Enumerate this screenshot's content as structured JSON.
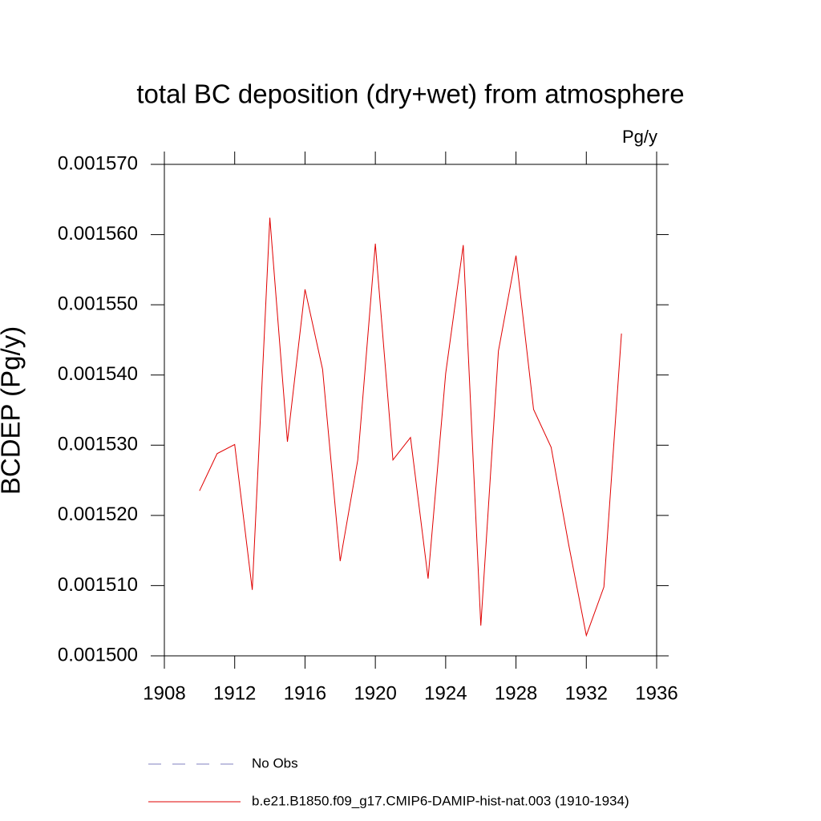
{
  "chart_data": {
    "type": "line",
    "title": "total BC deposition (dry+wet) from atmosphere",
    "units": "Pg/y",
    "y_label": "BCDEP  (Pg/y)",
    "x": [
      1910,
      1911,
      1912,
      1913,
      1914,
      1915,
      1916,
      1917,
      1918,
      1919,
      1920,
      1921,
      1922,
      1923,
      1924,
      1925,
      1926,
      1927,
      1928,
      1929,
      1930,
      1931,
      1932,
      1933,
      1934
    ],
    "series": [
      {
        "name": "No Obs",
        "color": "#8080c0",
        "line_style": "dashed",
        "values": [
          null,
          null,
          null,
          null,
          null,
          null,
          null,
          null,
          null,
          null,
          null,
          null,
          null,
          null,
          null,
          null,
          null,
          null,
          null,
          null,
          null,
          null,
          null,
          null,
          null
        ]
      },
      {
        "name": "b.e21.B1850.f09_g17.CMIP6-DAMIP-hist-nat.003 (1910-1934)",
        "color": "#e00000",
        "line_style": "solid",
        "values": [
          0.0015235,
          0.0015288,
          0.0015301,
          0.0015094,
          0.0015624,
          0.0015305,
          0.0015522,
          0.0015408,
          0.0015135,
          0.0015279,
          0.0015587,
          0.0015279,
          0.0015311,
          0.001511,
          0.0015402,
          0.0015585,
          0.0015043,
          0.0015434,
          0.001557,
          0.0015351,
          0.0015297,
          0.0015158,
          0.0015029,
          0.0015098,
          0.0015459
        ]
      }
    ],
    "xlim": [
      1908,
      1936
    ],
    "xticks": [
      1908,
      1912,
      1916,
      1920,
      1924,
      1928,
      1932,
      1936
    ],
    "ylim": [
      0.0015,
      0.00157
    ],
    "yticks": [
      {
        "value": 0.0015,
        "label": "0.001500"
      },
      {
        "value": 0.00151,
        "label": "0.001510"
      },
      {
        "value": 0.00152,
        "label": "0.001520"
      },
      {
        "value": 0.00153,
        "label": "0.001530"
      },
      {
        "value": 0.00154,
        "label": "0.001540"
      },
      {
        "value": 0.00155,
        "label": "0.001550"
      },
      {
        "value": 0.00156,
        "label": "0.001560"
      },
      {
        "value": 0.00157,
        "label": "0.001570"
      }
    ],
    "grid": false
  }
}
